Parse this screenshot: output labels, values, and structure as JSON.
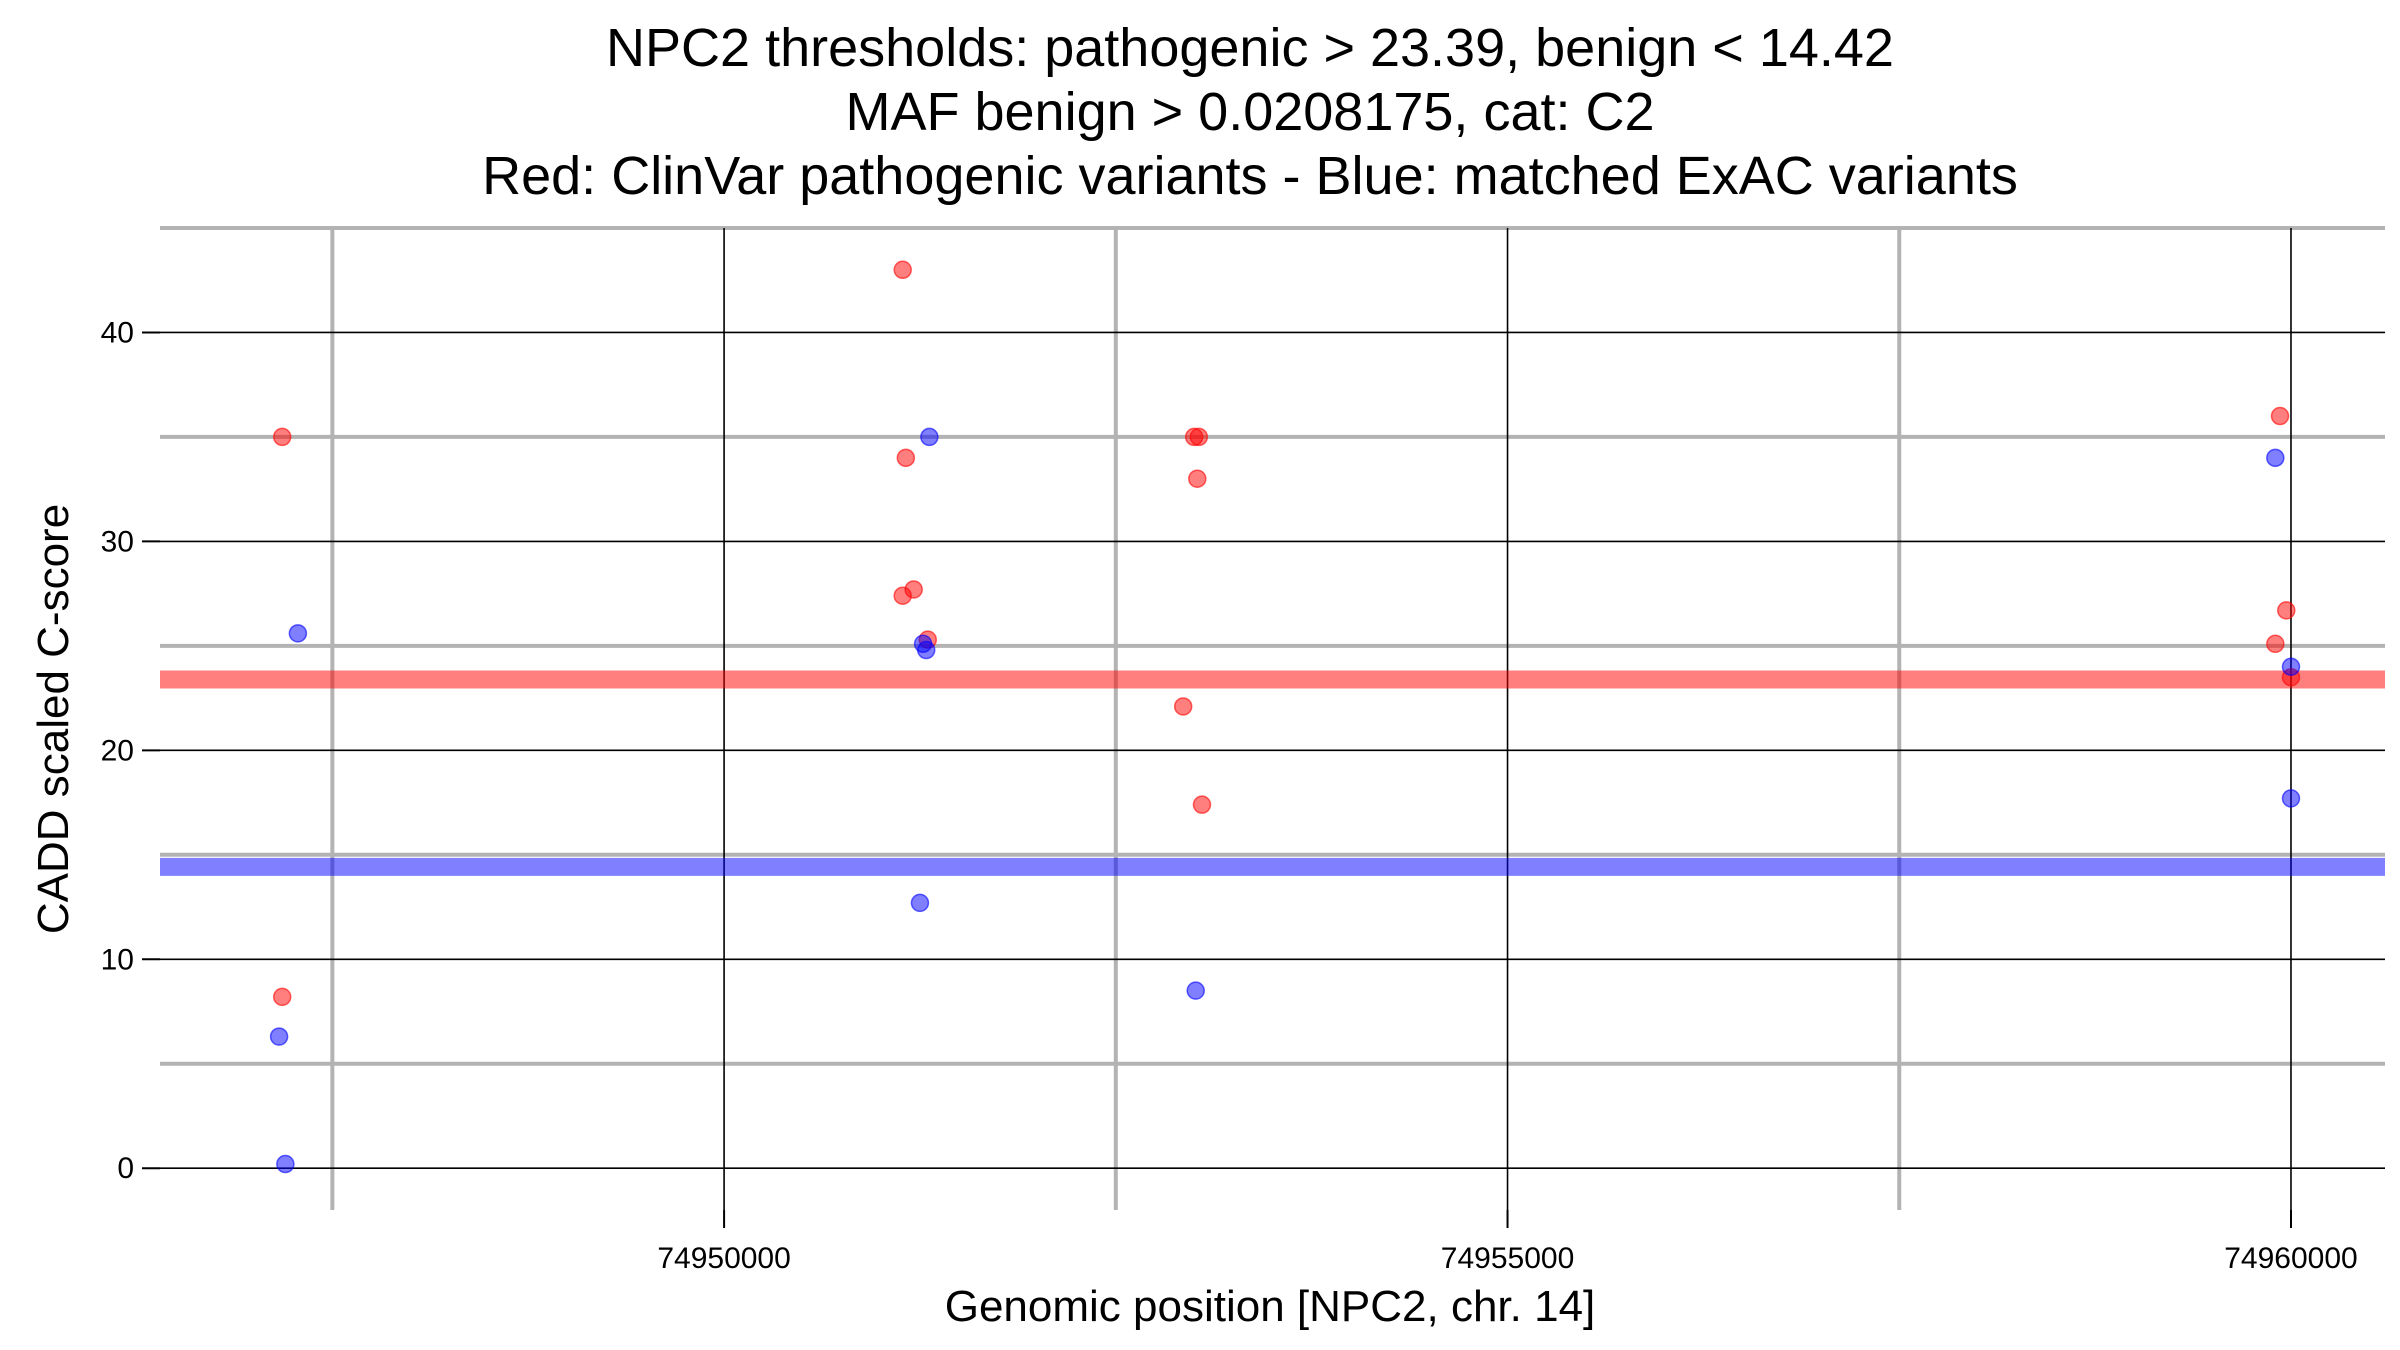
{
  "chart_data": {
    "type": "scatter",
    "title_lines": [
      "NPC2 thresholds: pathogenic > 23.39, benign < 14.42",
      "MAF benign > 0.0208175, cat: C2",
      "Red: ClinVar pathogenic variants - Blue: matched ExAC variants"
    ],
    "xlabel": "Genomic position [NPC2, chr. 14]",
    "ylabel": "CADD scaled C-score",
    "xlim": [
      74946400,
      74960600
    ],
    "ylim": [
      -2,
      45
    ],
    "x_ticks": [
      74950000,
      74955000,
      74960000
    ],
    "x_tick_labels": [
      "74950000",
      "74955000",
      "74960000"
    ],
    "y_ticks": [
      0,
      10,
      20,
      30,
      40
    ],
    "y_tick_labels": [
      "0",
      "10",
      "20",
      "30",
      "40"
    ],
    "x_minor_ticks": [
      74947500,
      74952500,
      74957500
    ],
    "y_minor_ticks": [
      5,
      15,
      25,
      35,
      45
    ],
    "grid": true,
    "thresholds": [
      {
        "name": "pathogenic",
        "value": 23.39,
        "color": "#ff0000"
      },
      {
        "name": "benign",
        "value": 14.42,
        "color": "#0000ff"
      }
    ],
    "series": [
      {
        "color": "#ff0000",
        "points": [
          [
            74947180,
            35.0
          ],
          [
            74947180,
            8.2
          ],
          [
            74951140,
            43.0
          ],
          [
            74951160,
            34.0
          ],
          [
            74951210,
            27.7
          ],
          [
            74951140,
            27.4
          ],
          [
            74951300,
            25.3
          ],
          [
            74953000,
            35.0
          ],
          [
            74953030,
            35.0
          ],
          [
            74953020,
            33.0
          ],
          [
            74952930,
            22.1
          ],
          [
            74953050,
            17.4
          ],
          [
            74959930,
            36.0
          ],
          [
            74959970,
            26.7
          ],
          [
            74959900,
            25.1
          ],
          [
            74960000,
            23.5
          ]
        ]
      },
      {
        "color": "#0000ff",
        "points": [
          [
            74947280,
            25.6
          ],
          [
            74947160,
            6.3
          ],
          [
            74947200,
            0.2
          ],
          [
            74951310,
            35.0
          ],
          [
            74951270,
            25.1
          ],
          [
            74951290,
            24.8
          ],
          [
            74951250,
            12.7
          ],
          [
            74953010,
            8.5
          ],
          [
            74959900,
            34.0
          ],
          [
            74960000,
            24.0
          ],
          [
            74960000,
            17.7
          ]
        ]
      }
    ]
  }
}
